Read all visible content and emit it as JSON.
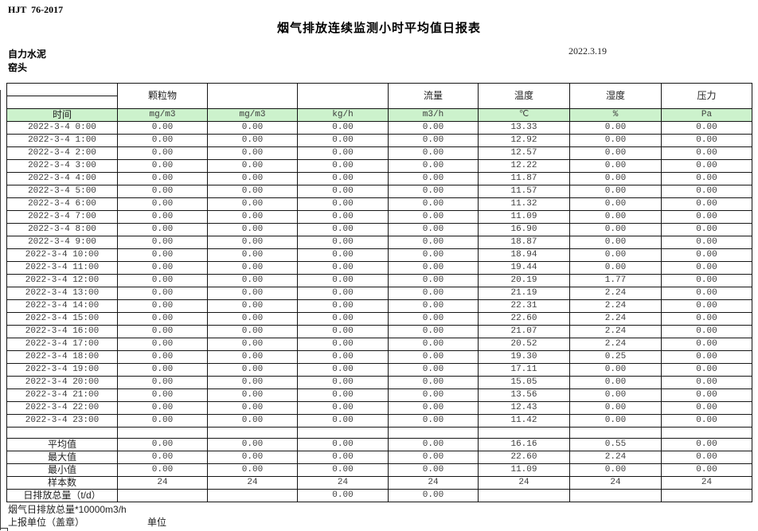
{
  "meta": {
    "standard_code": "HJT  76-2017",
    "title": "烟气排放连续监测小时平均值日报表",
    "date": "2022.3.19",
    "company": "自力水泥",
    "station": "窑头"
  },
  "table": {
    "colors": {
      "unit_row_bg": "#ccf2cc",
      "border": "#151515"
    },
    "pollutant_headers": [
      "",
      "颗粒物",
      "",
      "",
      "流量",
      "温度",
      "湿度",
      "压力"
    ],
    "unit_row": [
      "时间",
      "mg/m3",
      "mg/m3",
      "kg/h",
      "m3/h",
      "℃",
      "%",
      "Pa"
    ],
    "rows": [
      {
        "time": "2022-3-4 0:00",
        "values": [
          "0.00",
          "0.00",
          "0.00",
          "0.00",
          "13.33",
          "0.00",
          "0.00"
        ]
      },
      {
        "time": "2022-3-4 1:00",
        "values": [
          "0.00",
          "0.00",
          "0.00",
          "0.00",
          "12.92",
          "0.00",
          "0.00"
        ]
      },
      {
        "time": "2022-3-4 2:00",
        "values": [
          "0.00",
          "0.00",
          "0.00",
          "0.00",
          "12.57",
          "0.00",
          "0.00"
        ]
      },
      {
        "time": "2022-3-4 3:00",
        "values": [
          "0.00",
          "0.00",
          "0.00",
          "0.00",
          "12.22",
          "0.00",
          "0.00"
        ]
      },
      {
        "time": "2022-3-4 4:00",
        "values": [
          "0.00",
          "0.00",
          "0.00",
          "0.00",
          "11.87",
          "0.00",
          "0.00"
        ]
      },
      {
        "time": "2022-3-4 5:00",
        "values": [
          "0.00",
          "0.00",
          "0.00",
          "0.00",
          "11.57",
          "0.00",
          "0.00"
        ]
      },
      {
        "time": "2022-3-4 6:00",
        "values": [
          "0.00",
          "0.00",
          "0.00",
          "0.00",
          "11.32",
          "0.00",
          "0.00"
        ]
      },
      {
        "time": "2022-3-4 7:00",
        "values": [
          "0.00",
          "0.00",
          "0.00",
          "0.00",
          "11.09",
          "0.00",
          "0.00"
        ]
      },
      {
        "time": "2022-3-4 8:00",
        "values": [
          "0.00",
          "0.00",
          "0.00",
          "0.00",
          "16.90",
          "0.00",
          "0.00"
        ]
      },
      {
        "time": "2022-3-4 9:00",
        "values": [
          "0.00",
          "0.00",
          "0.00",
          "0.00",
          "18.87",
          "0.00",
          "0.00"
        ]
      },
      {
        "time": "2022-3-4 10:00",
        "values": [
          "0.00",
          "0.00",
          "0.00",
          "0.00",
          "18.94",
          "0.00",
          "0.00"
        ]
      },
      {
        "time": "2022-3-4 11:00",
        "values": [
          "0.00",
          "0.00",
          "0.00",
          "0.00",
          "19.44",
          "0.00",
          "0.00"
        ]
      },
      {
        "time": "2022-3-4 12:00",
        "values": [
          "0.00",
          "0.00",
          "0.00",
          "0.00",
          "20.19",
          "1.77",
          "0.00"
        ]
      },
      {
        "time": "2022-3-4 13:00",
        "values": [
          "0.00",
          "0.00",
          "0.00",
          "0.00",
          "21.19",
          "2.24",
          "0.00"
        ]
      },
      {
        "time": "2022-3-4 14:00",
        "values": [
          "0.00",
          "0.00",
          "0.00",
          "0.00",
          "22.31",
          "2.24",
          "0.00"
        ]
      },
      {
        "time": "2022-3-4 15:00",
        "values": [
          "0.00",
          "0.00",
          "0.00",
          "0.00",
          "22.60",
          "2.24",
          "0.00"
        ]
      },
      {
        "time": "2022-3-4 16:00",
        "values": [
          "0.00",
          "0.00",
          "0.00",
          "0.00",
          "21.07",
          "2.24",
          "0.00"
        ]
      },
      {
        "time": "2022-3-4 17:00",
        "values": [
          "0.00",
          "0.00",
          "0.00",
          "0.00",
          "20.52",
          "2.24",
          "0.00"
        ]
      },
      {
        "time": "2022-3-4 18:00",
        "values": [
          "0.00",
          "0.00",
          "0.00",
          "0.00",
          "19.30",
          "0.25",
          "0.00"
        ]
      },
      {
        "time": "2022-3-4 19:00",
        "values": [
          "0.00",
          "0.00",
          "0.00",
          "0.00",
          "17.11",
          "0.00",
          "0.00"
        ]
      },
      {
        "time": "2022-3-4 20:00",
        "values": [
          "0.00",
          "0.00",
          "0.00",
          "0.00",
          "15.05",
          "0.00",
          "0.00"
        ]
      },
      {
        "time": "2022-3-4 21:00",
        "values": [
          "0.00",
          "0.00",
          "0.00",
          "0.00",
          "13.56",
          "0.00",
          "0.00"
        ]
      },
      {
        "time": "2022-3-4 22:00",
        "values": [
          "0.00",
          "0.00",
          "0.00",
          "0.00",
          "12.43",
          "0.00",
          "0.00"
        ]
      },
      {
        "time": "2022-3-4 23:00",
        "values": [
          "0.00",
          "0.00",
          "0.00",
          "0.00",
          "11.42",
          "0.00",
          "0.00"
        ]
      }
    ],
    "summary": [
      {
        "label": "平均值",
        "values": [
          "0.00",
          "0.00",
          "0.00",
          "0.00",
          "16.16",
          "0.55",
          "0.00"
        ]
      },
      {
        "label": "最大值",
        "values": [
          "0.00",
          "0.00",
          "0.00",
          "0.00",
          "22.60",
          "2.24",
          "0.00"
        ]
      },
      {
        "label": "最小值",
        "values": [
          "0.00",
          "0.00",
          "0.00",
          "0.00",
          "11.09",
          "0.00",
          "0.00"
        ]
      },
      {
        "label": "样本数",
        "values": [
          "24",
          "24",
          "24",
          "24",
          "24",
          "24",
          "24"
        ]
      },
      {
        "label": "日排放总量（t/d）",
        "values": [
          "",
          "",
          "0.00",
          "0.00",
          "",
          "",
          ""
        ]
      }
    ]
  },
  "footer": {
    "note1": "烟气日排放总量*10000m3/h",
    "note2": "上报单位（盖章）",
    "note3": "单位"
  }
}
